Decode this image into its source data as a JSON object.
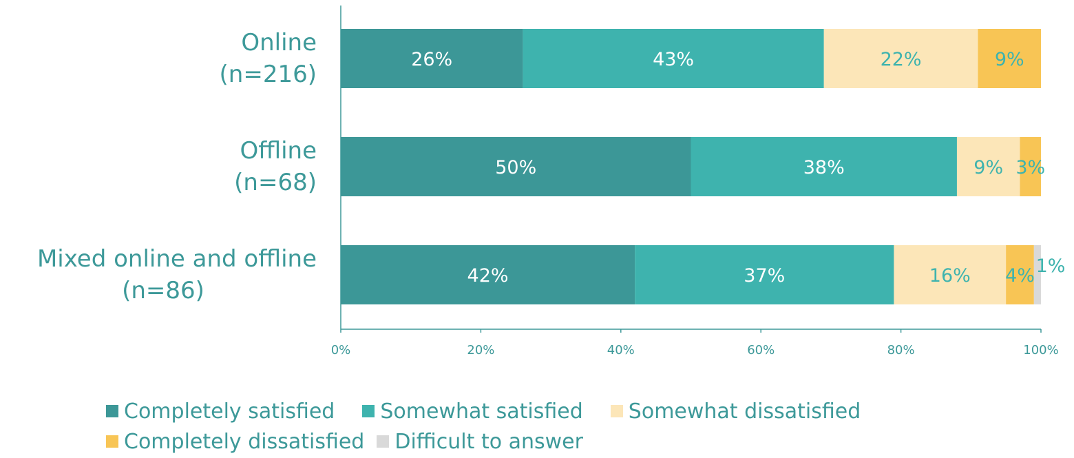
{
  "colors": {
    "text": "#3d9999",
    "axis": "#3d9999"
  },
  "chart_data": {
    "type": "bar",
    "orientation": "horizontal",
    "stacked": true,
    "categories": [
      "Online\n(n=216)",
      "Offline\n(n=68)",
      "Mixed online and offline\n(n=86)"
    ],
    "category_lines": [
      [
        "Online",
        "(n=216)"
      ],
      [
        "Offline",
        "(n=68)"
      ],
      [
        "Mixed online and offline",
        "(n=86)"
      ]
    ],
    "series": [
      {
        "name": "Completely satisfied",
        "color": "#3c9797",
        "label_color": "#ffffff",
        "values": [
          26,
          50,
          42
        ],
        "labels": [
          "26%",
          "50%",
          "42%"
        ]
      },
      {
        "name": "Somewhat satisfied",
        "color": "#3eb3ae",
        "label_color": "#ffffff",
        "values": [
          43,
          38,
          37
        ],
        "labels": [
          "43%",
          "38%",
          "37%"
        ]
      },
      {
        "name": "Somewhat dissatisfied",
        "color": "#fce6b8",
        "label_color": "#3eb3ae",
        "values": [
          22,
          9,
          16
        ],
        "labels": [
          "22%",
          "9%",
          "16%"
        ]
      },
      {
        "name": "Completely dissatisfied",
        "color": "#f8c555",
        "label_color": "#3eb3ae",
        "values": [
          9,
          3,
          4
        ],
        "labels": [
          "9%",
          "3%",
          "4%"
        ]
      },
      {
        "name": "Difficult to answer",
        "color": "#d9d9d9",
        "label_color": "#3eb3ae",
        "values": [
          0,
          0,
          1
        ],
        "labels": [
          "",
          "",
          "1%"
        ]
      }
    ],
    "xlim": [
      0,
      100
    ],
    "xticks": [
      "0%",
      "20%",
      "40%",
      "60%",
      "80%",
      "100%"
    ],
    "title": "",
    "xlabel": "",
    "ylabel": "",
    "grid": false,
    "legend_position": "bottom"
  }
}
